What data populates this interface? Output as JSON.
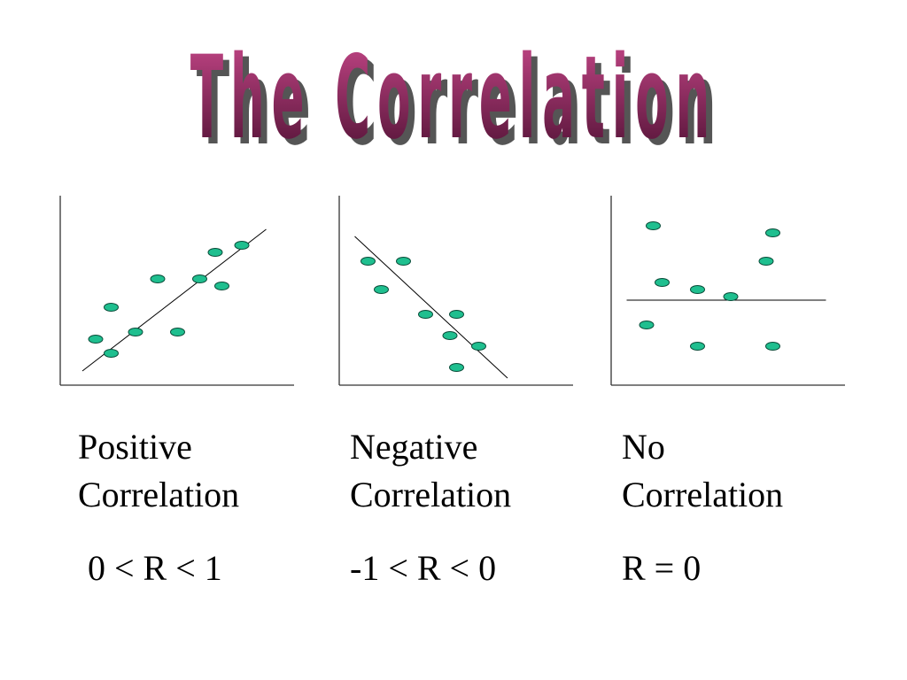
{
  "title": "The Correlation",
  "colors": {
    "title_top": "#c8488a",
    "title_bottom": "#4a0f30",
    "title_shadow": "#555555",
    "point_fill": "#1fbf8f",
    "point_stroke": "#0a4d3a",
    "axis": "#333333"
  },
  "panels": [
    {
      "caption": [
        "Positive",
        "Correlation"
      ],
      "formula": "0 < R < 1",
      "points": [
        [
          1.6,
          2.6
        ],
        [
          2.3,
          4.4
        ],
        [
          3.4,
          3.0
        ],
        [
          4.4,
          6.0
        ],
        [
          5.3,
          3.0
        ],
        [
          6.3,
          6.0
        ],
        [
          7.0,
          7.5
        ],
        [
          7.3,
          5.6
        ],
        [
          8.2,
          7.9
        ],
        [
          2.3,
          1.8
        ]
      ],
      "trend": [
        [
          1.0,
          0.8
        ],
        [
          9.3,
          8.8
        ]
      ]
    },
    {
      "caption": [
        "Negative",
        "Correlation"
      ],
      "formula": "-1 < R < 0",
      "points": [
        [
          1.3,
          7.0
        ],
        [
          1.9,
          5.4
        ],
        [
          2.9,
          7.0
        ],
        [
          3.9,
          4.0
        ],
        [
          5.3,
          4.0
        ],
        [
          5.0,
          2.8
        ],
        [
          6.3,
          2.2
        ],
        [
          5.3,
          1.0
        ]
      ],
      "trend": [
        [
          0.7,
          8.4
        ],
        [
          7.6,
          0.4
        ]
      ]
    },
    {
      "caption": [
        "No",
        "Correlation"
      ],
      "formula": "R = 0",
      "points": [
        [
          1.9,
          9.0
        ],
        [
          7.3,
          8.6
        ],
        [
          2.3,
          5.8
        ],
        [
          3.9,
          5.4
        ],
        [
          5.4,
          5.0
        ],
        [
          7.0,
          7.0
        ],
        [
          1.6,
          3.4
        ],
        [
          3.9,
          2.2
        ],
        [
          7.3,
          2.2
        ]
      ],
      "trend": [
        [
          0.7,
          4.8
        ],
        [
          9.7,
          4.8
        ]
      ]
    }
  ]
}
